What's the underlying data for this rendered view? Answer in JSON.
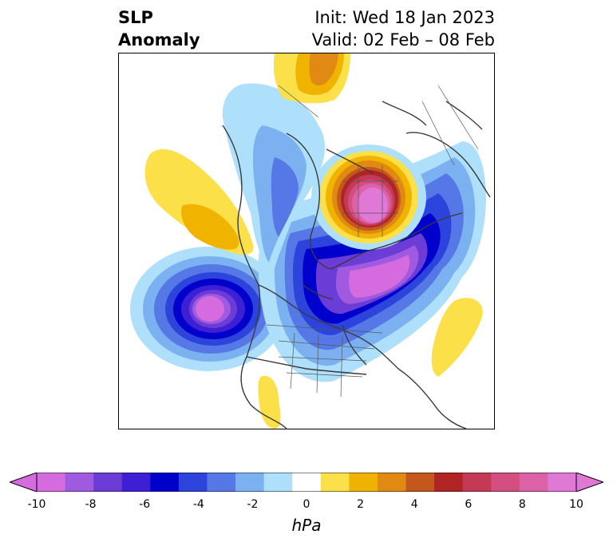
{
  "title": {
    "left": "SLP\nAnomaly",
    "right": "Init: Wed 18 Jan 2023\nValid: 02 Feb – 08 Feb"
  },
  "colorbar": {
    "units": "hPa",
    "tick_labels": [
      "-10",
      "-8",
      "-6",
      "-4",
      "-2",
      "0",
      "2",
      "4",
      "6",
      "8",
      "10"
    ],
    "min": -10,
    "max": 10,
    "colors": [
      "#d66be0",
      "#a05ae0",
      "#6b3cd6",
      "#3f1fd6",
      "#0000cc",
      "#2c44dc",
      "#5578e6",
      "#7bb1f0",
      "#aee0fb",
      "#ffffff",
      "#fbe04a",
      "#f0b400",
      "#e08a14",
      "#c4571c",
      "#b02424",
      "#c43a56",
      "#d24f80",
      "#dc62a8",
      "#e078d6"
    ],
    "extend": "both"
  },
  "map": {
    "projection": "polar-stereographic",
    "region": "North America / Arctic",
    "features": [
      "coastlines",
      "country-borders",
      "state-borders"
    ]
  }
}
